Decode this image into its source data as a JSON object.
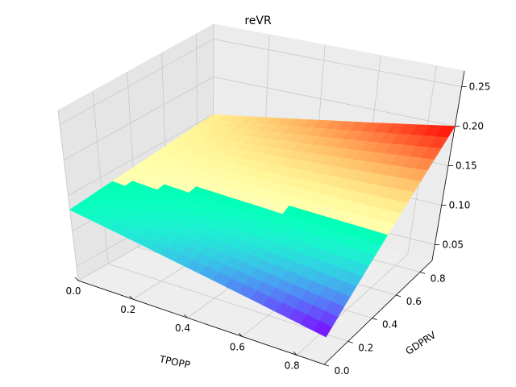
{
  "chart_data": {
    "type": "surface",
    "title": "reVR",
    "xlabel": "TPOPP",
    "ylabel": "GDPRV",
    "zlabel": "",
    "xlim": [
      0.0,
      0.9
    ],
    "ylim": [
      0.0,
      0.9
    ],
    "zlim": [
      0.03,
      0.27
    ],
    "x_ticks": [
      "0.0",
      "0.2",
      "0.4",
      "0.6",
      "0.8"
    ],
    "y_ticks": [
      "0.0",
      "0.2",
      "0.4",
      "0.6",
      "0.8"
    ],
    "z_ticks": [
      "0.05",
      "0.10",
      "0.15",
      "0.20",
      "0.25"
    ],
    "colormap": "rainbow",
    "grid": true,
    "surface_corners": [
      {
        "x": 0.0,
        "y": 0.0,
        "z": 0.13
      },
      {
        "x": 0.0,
        "y": 0.9,
        "z": 0.15
      },
      {
        "x": 0.9,
        "y": 0.0,
        "z": 0.07
      },
      {
        "x": 0.9,
        "y": 0.9,
        "z": 0.2
      }
    ]
  }
}
